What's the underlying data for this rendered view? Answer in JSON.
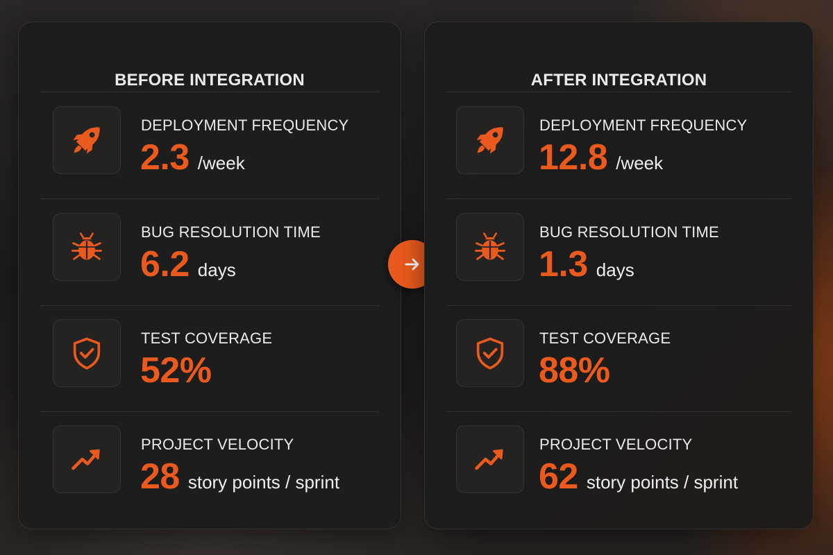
{
  "panels": [
    {
      "title": "BEFORE INTEGRATION",
      "metrics": [
        {
          "label": "DEPLOYMENT FREQUENCY",
          "value": "2.3",
          "unit": "/week",
          "icon": "rocket-icon"
        },
        {
          "label": "BUG RESOLUTION TIME",
          "value": "6.2",
          "unit": "days",
          "icon": "bug-icon"
        },
        {
          "label": "TEST COVERAGE",
          "value": "52%",
          "unit": "",
          "icon": "shield-check-icon"
        },
        {
          "label": "PROJECT VELOCITY",
          "value": "28",
          "unit": "story points / sprint",
          "icon": "trend-up-icon"
        }
      ]
    },
    {
      "title": "AFTER INTEGRATION",
      "metrics": [
        {
          "label": "DEPLOYMENT FREQUENCY",
          "value": "12.8",
          "unit": "/week",
          "icon": "rocket-icon"
        },
        {
          "label": "BUG RESOLUTION TIME",
          "value": "1.3",
          "unit": "days",
          "icon": "bug-icon"
        },
        {
          "label": "TEST COVERAGE",
          "value": "88%",
          "unit": "",
          "icon": "shield-check-icon"
        },
        {
          "label": "PROJECT VELOCITY",
          "value": "62",
          "unit": "story points / sprint",
          "icon": "trend-up-icon"
        }
      ]
    }
  ],
  "transition_icon": "arrow-right-icon",
  "colors": {
    "accent": "#ea5a1e",
    "panel_background": "#1d1d1e",
    "text_primary": "#ecebea"
  }
}
